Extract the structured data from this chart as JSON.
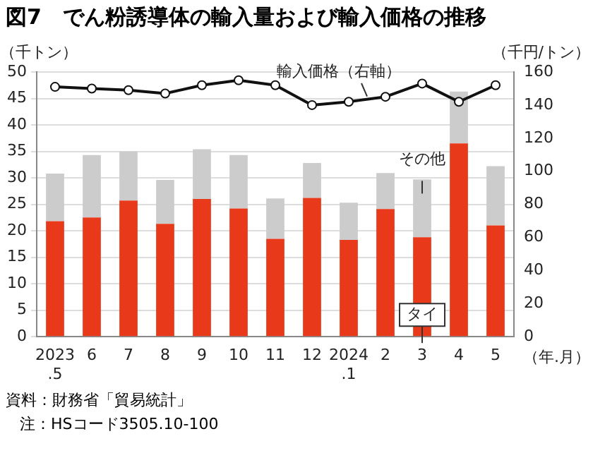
{
  "chart_data": {
    "type": "bar",
    "stacked": true,
    "title": "図7　でん粉誘導体の輸入量および輸入価格の推移",
    "ylabel": "（千トン）",
    "y2label": "（千円/トン）",
    "xlabel": "（年.月）",
    "categories": [
      "2023\n.5",
      "6",
      "7",
      "8",
      "9",
      "10",
      "11",
      "12",
      "2024\n.1",
      "2",
      "3",
      "4",
      "5"
    ],
    "series": [
      {
        "name": "タイ",
        "color": "#e8391a",
        "values": [
          21.8,
          22.5,
          25.7,
          21.3,
          26.0,
          24.2,
          18.5,
          26.2,
          18.3,
          24.1,
          18.8,
          36.5,
          21.0
        ]
      },
      {
        "name": "その他",
        "color": "#cccccc",
        "values": [
          9.0,
          11.8,
          9.3,
          8.3,
          9.4,
          10.1,
          7.6,
          6.6,
          7.0,
          6.8,
          10.9,
          9.8,
          11.2
        ]
      },
      {
        "name": "輸入価格（右軸）",
        "type": "line",
        "axis": "y2",
        "color": "#111111",
        "marker": "circle",
        "values": [
          151,
          150,
          149,
          147,
          152,
          155,
          152,
          140,
          142,
          145,
          153,
          142,
          152
        ]
      }
    ],
    "ylim": [
      0,
      50
    ],
    "yticks": [
      0,
      5,
      10,
      15,
      20,
      25,
      30,
      35,
      40,
      45,
      50
    ],
    "y2lim": [
      0,
      160
    ],
    "y2ticks": [
      0,
      20,
      40,
      60,
      80,
      100,
      120,
      140,
      160
    ],
    "grid": "y",
    "legend": false,
    "annotations": [
      "資料：財務省「貿易統計」",
      "注：HSコード3505.10-100"
    ]
  }
}
